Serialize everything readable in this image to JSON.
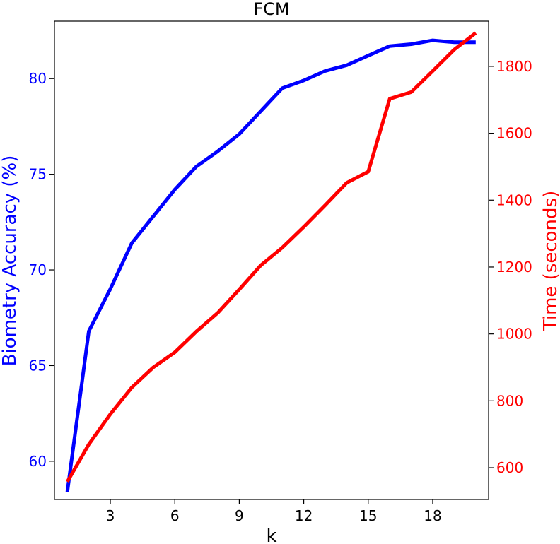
{
  "chart_data": {
    "type": "line",
    "title": "FCM",
    "xlabel": "k",
    "ylabel_left": "Biometry Accuracy (%)",
    "ylabel_right": "Time (seconds)",
    "xlim": [
      0.4,
      20.6
    ],
    "ylim_left": [
      58.0,
      83.0
    ],
    "ylim_right": [
      505,
      1935
    ],
    "x_ticks": [
      3,
      6,
      9,
      12,
      15,
      18
    ],
    "y_left_ticks": [
      60,
      65,
      70,
      75,
      80
    ],
    "y_right_ticks": [
      600,
      800,
      1000,
      1200,
      1400,
      1600,
      1800
    ],
    "grid": false,
    "x": [
      1,
      2,
      3,
      4,
      5,
      6,
      7,
      8,
      9,
      10,
      11,
      12,
      13,
      14,
      15,
      16,
      17,
      18,
      19,
      20
    ],
    "series": [
      {
        "axis": "left",
        "color": "#0000ff",
        "values": [
          58.4,
          66.8,
          69.0,
          71.4,
          72.8,
          74.2,
          75.4,
          76.2,
          77.1,
          78.3,
          79.5,
          79.9,
          80.4,
          80.7,
          81.2,
          81.7,
          81.8,
          82.0,
          81.9,
          81.9
        ]
      },
      {
        "axis": "right",
        "color": "#ff0000",
        "values": [
          558,
          670,
          760,
          840,
          900,
          945,
          1007,
          1063,
          1133,
          1205,
          1258,
          1320,
          1385,
          1452,
          1485,
          1703,
          1723,
          1786,
          1850,
          1900
        ]
      }
    ]
  },
  "colors": {
    "left_axis": "#0000ff",
    "right_axis": "#ff0000",
    "frame": "#000000"
  }
}
